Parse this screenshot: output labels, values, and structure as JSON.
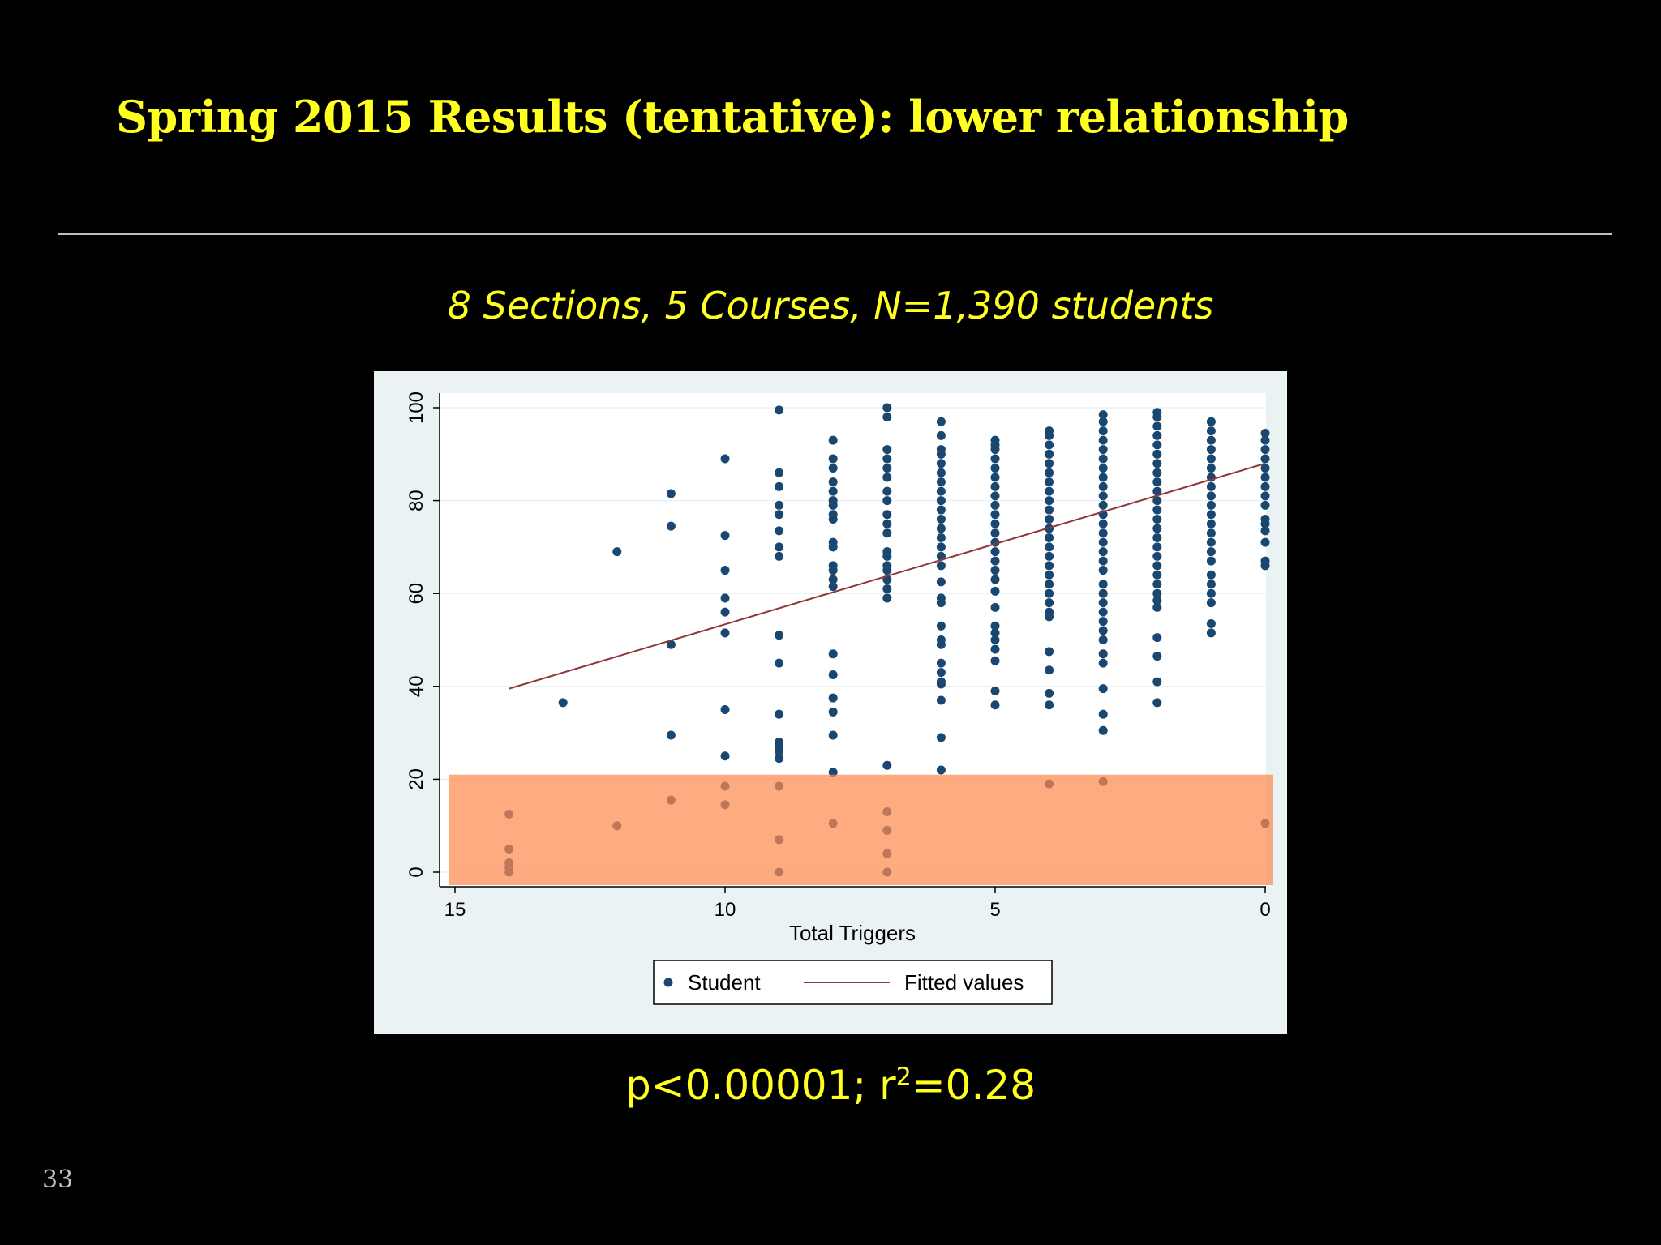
{
  "slide": {
    "title": "Spring 2015 Results (tentative): lower relationship",
    "subtitle": "8 Sections, 5 Courses, N=1,390 students",
    "stats_prefix": "p<0.00001; r",
    "stats_sup": "2",
    "stats_suffix": "=0.28",
    "page_number": "33"
  },
  "colors": {
    "title": "#FFFF22",
    "background": "#000000",
    "plot_outer": "#EAF2F3",
    "point": "#1A476F",
    "fit_line": "#90353B",
    "highlight": "#FF8A50"
  },
  "chart_data": {
    "type": "scatter",
    "xlabel": "Total Triggers",
    "ylabel": "",
    "xlim": [
      15,
      0
    ],
    "x_reversed": true,
    "ylim": [
      0,
      100
    ],
    "xticks": [
      "15",
      "10",
      "5",
      "0"
    ],
    "yticks": [
      "0",
      "20",
      "40",
      "60",
      "80",
      "100"
    ],
    "grid": true,
    "legend": {
      "position": "bottom",
      "entries": [
        "Student",
        "Fitted values"
      ]
    },
    "highlight_band": {
      "y_range": [
        0,
        21
      ],
      "x_range": [
        15,
        0
      ]
    },
    "fitted_line": {
      "name": "Fitted values",
      "x": [
        14,
        0
      ],
      "y": [
        39.5,
        88
      ]
    },
    "series": [
      {
        "name": "Student",
        "columns": [
          {
            "x": 14,
            "y": [
              12.5,
              5,
              2,
              1,
              0
            ]
          },
          {
            "x": 13,
            "y": [
              36.5
            ]
          },
          {
            "x": 12,
            "y": [
              69,
              10
            ]
          },
          {
            "x": 11,
            "y": [
              81.5,
              74.5,
              49,
              29.5,
              15.5
            ]
          },
          {
            "x": 10,
            "y": [
              89,
              72.5,
              65,
              59,
              56,
              51.5,
              35,
              25,
              18.5,
              14.5
            ]
          },
          {
            "x": 9,
            "y": [
              99.5,
              86,
              83,
              79,
              77,
              73.5,
              70,
              68,
              51,
              45,
              34,
              28,
              27,
              26,
              24.5,
              18.5,
              7,
              0
            ]
          },
          {
            "x": 8,
            "y": [
              93,
              89,
              87,
              84,
              82,
              80,
              79,
              77,
              76,
              71,
              70,
              66,
              65,
              63,
              61.5,
              47,
              42.5,
              37.5,
              34.5,
              29.5,
              21.5,
              10.5
            ]
          },
          {
            "x": 7,
            "y": [
              100,
              98,
              91,
              89,
              87,
              85,
              82,
              80,
              77,
              75,
              73,
              69,
              68,
              66,
              65,
              63,
              61,
              59,
              23,
              13,
              9,
              4,
              0
            ]
          },
          {
            "x": 6,
            "y": [
              97,
              94,
              91,
              90,
              88,
              86,
              84,
              82,
              80,
              78,
              76,
              74,
              72,
              70,
              68,
              66,
              62.5,
              59,
              58,
              53,
              50,
              49,
              45,
              43,
              41,
              40.5,
              37,
              29,
              22
            ]
          },
          {
            "x": 5,
            "y": [
              93,
              92,
              91,
              89,
              87,
              85,
              83,
              81,
              79,
              77,
              75,
              73,
              71,
              69,
              67,
              65,
              63,
              60.5,
              57,
              53,
              51.5,
              50,
              48,
              45.5,
              39,
              36
            ]
          },
          {
            "x": 4,
            "y": [
              95,
              94,
              92,
              90,
              88,
              86,
              84,
              82,
              80,
              78,
              76,
              74,
              72,
              70,
              68,
              66,
              64,
              62,
              60,
              58,
              56,
              55,
              47.5,
              43.5,
              38.5,
              36,
              19
            ]
          },
          {
            "x": 3,
            "y": [
              98.5,
              97,
              95,
              93,
              91,
              89,
              87,
              85,
              83,
              81,
              79,
              77,
              75,
              73,
              71,
              69,
              67,
              65,
              62,
              60,
              58,
              56,
              54,
              52,
              50,
              47,
              45,
              39.5,
              34,
              30.5,
              19.5
            ]
          },
          {
            "x": 2,
            "y": [
              99,
              98,
              96,
              94,
              92,
              90,
              88,
              86,
              84,
              82,
              80,
              78,
              76,
              74,
              72,
              70,
              68,
              66,
              64,
              62,
              60,
              58.5,
              57,
              50.5,
              46.5,
              41,
              36.5
            ]
          },
          {
            "x": 1,
            "y": [
              97,
              95,
              93,
              91,
              89,
              87,
              85,
              83,
              81,
              79,
              77,
              75,
              73,
              71,
              69,
              67,
              64,
              62,
              60,
              58,
              53.5,
              51.5
            ]
          },
          {
            "x": 0,
            "y": [
              94.5,
              93,
              91,
              89,
              87,
              85,
              83,
              81,
              79,
              76,
              75,
              73.5,
              71,
              67,
              66,
              10.5
            ]
          }
        ]
      }
    ]
  }
}
